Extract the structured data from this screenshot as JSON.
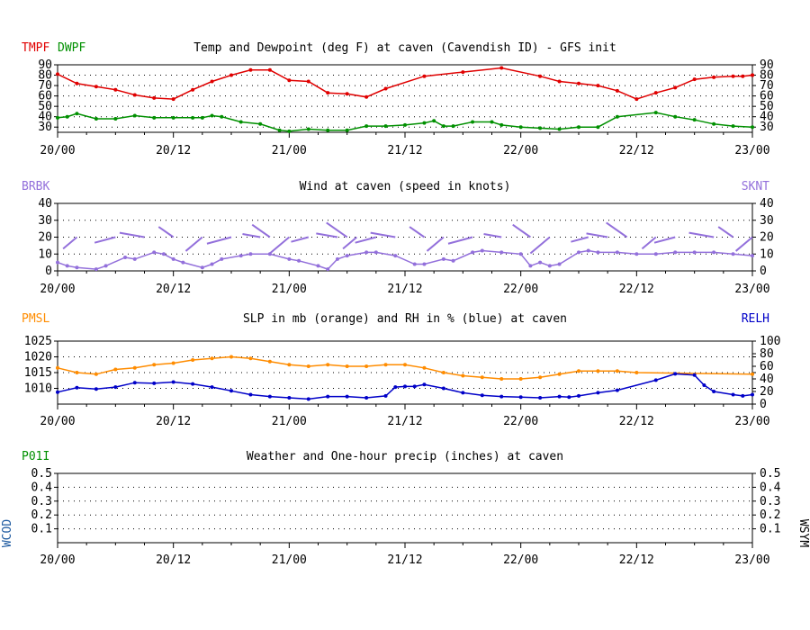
{
  "x_labels": [
    "20/00",
    "20/12",
    "21/00",
    "21/12",
    "22/00",
    "22/12",
    "23/00"
  ],
  "colors": {
    "temp": "#e00000",
    "dew": "#009000",
    "wind": "#9370db",
    "slp": "#ff8c00",
    "rh": "#0000c8",
    "precip": "#009000",
    "wcod": "#1e5aa0"
  },
  "chart_data": [
    {
      "type": "line",
      "title": "Temp and Dewpoint (deg F) at caven (Cavendish ID) - GFS init",
      "left_labels": [
        {
          "text": "TMPF",
          "color": "#e00000"
        },
        {
          "text": "DWPF",
          "color": "#009000"
        }
      ],
      "right_label": "",
      "ylim": [
        25,
        90
      ],
      "yticks": [
        30,
        40,
        50,
        60,
        70,
        80,
        90
      ],
      "x_hours": [
        0,
        3,
        6,
        9,
        12,
        15,
        18,
        21,
        24,
        27,
        30,
        33,
        36,
        39,
        42,
        45,
        48,
        51,
        54,
        57,
        60,
        63,
        66,
        69,
        72
      ],
      "series": [
        {
          "name": "TMPF",
          "values": [
            81,
            72,
            69,
            66,
            61,
            58,
            57,
            66,
            74,
            80,
            85,
            85,
            75,
            74,
            63,
            62,
            59,
            67,
            79,
            83,
            87,
            79,
            74,
            72,
            70,
            65,
            57,
            63,
            68,
            76,
            78,
            79,
            79,
            80,
            80
          ],
          "x": [
            0,
            2,
            4,
            6,
            8,
            10,
            12,
            14,
            16,
            18,
            20,
            22,
            24,
            26,
            28,
            30,
            32,
            34,
            38,
            42,
            46,
            50,
            52,
            54,
            56,
            58,
            60,
            62,
            64,
            66,
            68,
            70,
            71,
            72,
            72
          ]
        },
        {
          "name": "DWPF",
          "values": [
            39,
            40,
            43,
            38,
            38,
            41,
            39,
            39,
            39,
            39,
            41,
            40,
            35,
            33,
            27,
            26,
            28,
            27,
            27,
            31,
            31,
            32,
            34,
            36,
            31,
            31,
            35,
            35,
            32,
            30,
            29,
            28,
            30,
            30,
            40,
            44,
            40,
            37,
            33,
            31,
            30
          ],
          "x": [
            0,
            1,
            2,
            4,
            6,
            8,
            10,
            12,
            14,
            15,
            16,
            17,
            19,
            21,
            23,
            24,
            26,
            28,
            30,
            32,
            34,
            36,
            38,
            39,
            40,
            41,
            43,
            45,
            46,
            48,
            50,
            52,
            54,
            56,
            58,
            62,
            64,
            66,
            68,
            70,
            72
          ]
        }
      ]
    },
    {
      "type": "line",
      "title": "Wind at  caven (speed in knots)",
      "left_labels": [
        {
          "text": "BRBK",
          "color": "#9370db"
        }
      ],
      "right_label": "SKNT",
      "ylim": [
        0,
        40
      ],
      "yticks": [
        0,
        10,
        20,
        30,
        40
      ],
      "series": [
        {
          "name": "SKNT",
          "values": [
            5,
            3,
            2,
            1,
            3,
            8,
            7,
            11,
            10,
            7,
            5,
            2,
            4,
            7,
            9,
            10,
            10,
            7,
            6,
            3,
            1,
            7,
            9,
            11,
            11,
            9,
            4,
            4,
            7,
            6,
            11,
            12,
            11,
            10,
            3,
            5,
            3,
            4,
            11,
            12,
            11,
            11,
            10,
            10,
            11,
            11,
            11,
            10,
            9
          ],
          "x": [
            0,
            1,
            2,
            4,
            5,
            7,
            8,
            10,
            11,
            12,
            13,
            15,
            16,
            17,
            19,
            20,
            22,
            24,
            25,
            27,
            28,
            29,
            30,
            32,
            33,
            35,
            37,
            38,
            40,
            41,
            43,
            44,
            46,
            48,
            49,
            50,
            51,
            52,
            54,
            55,
            56,
            58,
            60,
            62,
            64,
            66,
            68,
            70,
            72
          ]
        }
      ]
    },
    {
      "type": "line",
      "title": "SLP in mb (orange) and RH in % (blue) at  caven",
      "left_labels": [
        {
          "text": "PMSL",
          "color": "#ff8c00"
        }
      ],
      "right_label": "RELH",
      "ylim_left": [
        1005,
        1025
      ],
      "yticks_left": [
        1010,
        1015,
        1020,
        1025
      ],
      "ylim_right": [
        0,
        100
      ],
      "yticks_right": [
        0,
        20,
        40,
        60,
        80,
        100
      ],
      "series": [
        {
          "name": "PMSL",
          "axis": "left",
          "values": [
            1016.5,
            1015,
            1014.5,
            1016,
            1016.5,
            1017.5,
            1018,
            1019,
            1019.5,
            1020,
            1019.5,
            1018.5,
            1017.5,
            1017,
            1017.5,
            1017,
            1017,
            1017.5,
            1017.5,
            1016.5,
            1015,
            1014,
            1013.5,
            1013,
            1013,
            1013.5,
            1014.5,
            1015.5,
            1015.5,
            1015.5,
            1015,
            1014.5
          ],
          "x": [
            0,
            2,
            4,
            6,
            8,
            10,
            12,
            14,
            16,
            18,
            20,
            22,
            24,
            26,
            28,
            30,
            32,
            34,
            36,
            38,
            40,
            42,
            44,
            46,
            48,
            50,
            52,
            54,
            56,
            58,
            60,
            72
          ]
        },
        {
          "name": "RELH",
          "axis": "right",
          "values": [
            19,
            26,
            24,
            27,
            34,
            33,
            35,
            32,
            27,
            21,
            15,
            12,
            10,
            8,
            12,
            12,
            10,
            13,
            27,
            28,
            28,
            31,
            25,
            18,
            14,
            12,
            11,
            10,
            12,
            11,
            13,
            18,
            22,
            38,
            48,
            46,
            30,
            20,
            15,
            13,
            15
          ],
          "x": [
            0,
            2,
            4,
            6,
            8,
            10,
            12,
            14,
            16,
            18,
            20,
            22,
            24,
            26,
            28,
            30,
            32,
            34,
            35,
            36,
            37,
            38,
            40,
            42,
            44,
            46,
            48,
            50,
            52,
            53,
            54,
            56,
            58,
            62,
            64,
            66,
            67,
            68,
            70,
            71,
            72
          ]
        }
      ]
    },
    {
      "type": "line",
      "title": "Weather and One-hour precip (inches) at  caven",
      "left_labels": [
        {
          "text": "P01I",
          "color": "#009000"
        }
      ],
      "right_label": "",
      "side_labels": {
        "left": "WCOD",
        "right": "WSYM"
      },
      "ylim": [
        0,
        0.5
      ],
      "yticks": [
        0.1,
        0.2,
        0.3,
        0.4,
        0.5
      ],
      "series": []
    }
  ]
}
